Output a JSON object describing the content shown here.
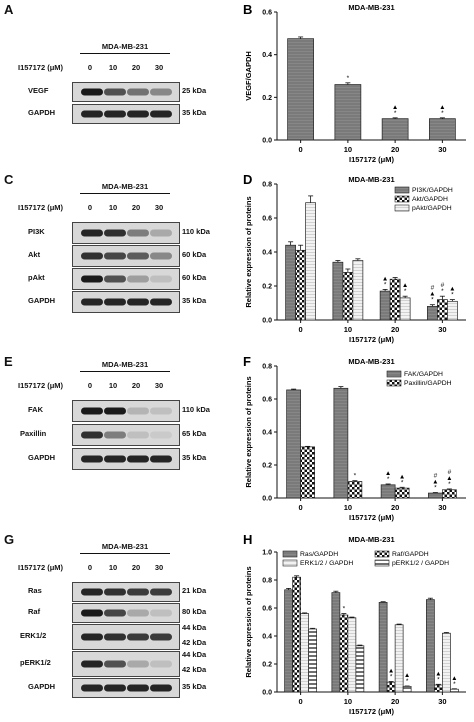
{
  "panels": {
    "A": {
      "letter": "A",
      "cell_line": "MDA-MB-231",
      "dose_label": "I157172 (μM)",
      "doses": [
        "0",
        "10",
        "20",
        "30"
      ],
      "rows": [
        {
          "name": "VEGF",
          "kda": "25 kDa",
          "intensity": [
            0.95,
            0.7,
            0.55,
            0.45
          ]
        },
        {
          "name": "GAPDH",
          "kda": "35 kDa",
          "intensity": [
            0.9,
            0.9,
            0.9,
            0.9
          ]
        }
      ]
    },
    "C": {
      "letter": "C",
      "cell_line": "MDA-MB-231",
      "dose_label": "I157172 (μM)",
      "doses": [
        "0",
        "10",
        "20",
        "30"
      ],
      "rows": [
        {
          "name": "PI3K",
          "kda": "110 kDa",
          "intensity": [
            0.9,
            0.85,
            0.5,
            0.3
          ]
        },
        {
          "name": "Akt",
          "kda": "60 kDa",
          "intensity": [
            0.85,
            0.75,
            0.65,
            0.45
          ]
        },
        {
          "name": "pAkt",
          "kda": "60 kDa",
          "intensity": [
            0.95,
            0.7,
            0.35,
            0.2
          ]
        },
        {
          "name": "GAPDH",
          "kda": "35 kDa",
          "intensity": [
            0.9,
            0.9,
            0.9,
            0.9
          ]
        }
      ]
    },
    "E": {
      "letter": "E",
      "cell_line": "MDA-MB-231",
      "dose_label": "I157172 (μM)",
      "doses": [
        "0",
        "10",
        "20",
        "30"
      ],
      "rows": [
        {
          "name": "FAK",
          "kda": "110 kDa",
          "intensity": [
            0.95,
            0.95,
            0.25,
            0.2
          ]
        },
        {
          "name": "Paxillin",
          "kda": "65 kDa",
          "intensity": [
            0.85,
            0.5,
            0.2,
            0.15
          ]
        },
        {
          "name": "GAPDH",
          "kda": "35 kDa",
          "intensity": [
            0.9,
            0.9,
            0.9,
            0.9
          ]
        }
      ]
    },
    "G": {
      "letter": "G",
      "cell_line": "MDA-MB-231",
      "dose_label": "I157172 (μM)",
      "doses": [
        "0",
        "10",
        "20",
        "30"
      ],
      "rows": [
        {
          "name": "Ras",
          "kda": "21 kDa",
          "intensity": [
            0.9,
            0.85,
            0.8,
            0.8
          ]
        },
        {
          "name": "Raf",
          "kda": "80 kDa",
          "intensity": [
            0.95,
            0.75,
            0.3,
            0.2
          ]
        },
        {
          "name": "ERK1/2",
          "kda": "44 kDa",
          "kda2": "42 kDa",
          "intensity": [
            0.9,
            0.85,
            0.8,
            0.8
          ]
        },
        {
          "name": "pERK1/2",
          "kda": "44 kDa",
          "kda2": "42 kDa",
          "intensity": [
            0.9,
            0.7,
            0.3,
            0.2
          ]
        },
        {
          "name": "GAPDH",
          "kda": "35 kDa",
          "intensity": [
            0.9,
            0.9,
            0.9,
            0.9
          ]
        }
      ]
    }
  },
  "chart_data": [
    {
      "panel": "B",
      "type": "bar",
      "title": "MDA-MB-231",
      "xlabel": "I157172 (μM)",
      "ylabel": "VEGF/GAPDH",
      "categories": [
        "0",
        "10",
        "20",
        "30"
      ],
      "ylim": [
        0,
        0.6
      ],
      "yticks": [
        "0.0",
        "0.2",
        "0.4",
        "0.6"
      ],
      "legend": "none",
      "series": [
        {
          "values": [
            0.475,
            0.26,
            0.1,
            0.1
          ],
          "err": [
            0.008,
            0.008,
            0.004,
            0.004
          ],
          "marks": [
            "",
            "*",
            "▲\n*",
            "▲\n*"
          ],
          "pattern": "gray"
        }
      ]
    },
    {
      "panel": "D",
      "type": "bar",
      "title": "MDA-MB-231",
      "xlabel": "I157172 (μM)",
      "ylabel": "Relative expression of proteins",
      "categories": [
        "0",
        "10",
        "20",
        "30"
      ],
      "ylim": [
        0,
        0.8
      ],
      "yticks": [
        "0.0",
        "0.2",
        "0.4",
        "0.6",
        "0.8"
      ],
      "legend": "top-right",
      "series": [
        {
          "name": "PI3K/GAPDH",
          "values": [
            0.44,
            0.34,
            0.17,
            0.08
          ],
          "err": [
            0.02,
            0.01,
            0.01,
            0.01
          ],
          "marks": [
            "",
            "",
            "▲\n*",
            "#\n▲\n*"
          ],
          "pattern": "gray"
        },
        {
          "name": "Akt/GAPDH",
          "values": [
            0.41,
            0.28,
            0.24,
            0.12
          ],
          "err": [
            0.03,
            0.02,
            0.01,
            0.02
          ],
          "marks": [
            "",
            "",
            "",
            "#\n*"
          ],
          "pattern": "check"
        },
        {
          "name": "pAkt/GAPDH",
          "values": [
            0.69,
            0.35,
            0.13,
            0.11
          ],
          "err": [
            0.04,
            0.01,
            0.01,
            0.01
          ],
          "marks": [
            "",
            "",
            "▲\n*",
            "▲\n*"
          ],
          "pattern": "light"
        }
      ]
    },
    {
      "panel": "F",
      "type": "bar",
      "title": "MDA-MB-231",
      "xlabel": "I157172 (μM)",
      "ylabel": "Relative expression of proteins",
      "categories": [
        "0",
        "10",
        "20",
        "30"
      ],
      "ylim": [
        0,
        0.8
      ],
      "yticks": [
        "0.0",
        "0.2",
        "0.4",
        "0.6",
        "0.8"
      ],
      "legend": "top-right",
      "series": [
        {
          "name": "FAK/GAPDH",
          "values": [
            0.655,
            0.665,
            0.08,
            0.03
          ],
          "err": [
            0.005,
            0.01,
            0.005,
            0.003
          ],
          "marks": [
            "",
            "",
            "▲\n*",
            "#\n▲\n*"
          ],
          "pattern": "gray"
        },
        {
          "name": "Paxillin/GAPDH",
          "values": [
            0.31,
            0.1,
            0.06,
            0.05
          ],
          "err": [
            0.003,
            0.005,
            0.005,
            0.005
          ],
          "marks": [
            "",
            "*",
            "▲\n*",
            "#\n▲\n*"
          ],
          "pattern": "check"
        }
      ]
    },
    {
      "panel": "H",
      "type": "bar",
      "title": "MDA-MB-231",
      "xlabel": "I157172 (μM)",
      "ylabel": "Relative expression of proteins",
      "categories": [
        "0",
        "10",
        "20",
        "30"
      ],
      "ylim": [
        0,
        1.0
      ],
      "yticks": [
        "0.0",
        "0.2",
        "0.4",
        "0.6",
        "0.8",
        "1.0"
      ],
      "legend": "top",
      "series": [
        {
          "name": "Ras/GAPDH",
          "values": [
            0.73,
            0.71,
            0.64,
            0.66
          ],
          "err": [
            0.01,
            0.01,
            0.005,
            0.01
          ],
          "marks": [
            "",
            "",
            "",
            ""
          ],
          "pattern": "gray"
        },
        {
          "name": "Raf/GAPDH",
          "values": [
            0.82,
            0.55,
            0.07,
            0.05
          ],
          "err": [
            0.01,
            0.01,
            0.005,
            0.005
          ],
          "marks": [
            "",
            "*",
            "▲\n*",
            "▲\n*"
          ],
          "pattern": "check"
        },
        {
          "name": "ERK1/2 / GAPDH",
          "values": [
            0.56,
            0.53,
            0.48,
            0.42
          ],
          "err": [
            0.005,
            0.005,
            0.005,
            0.005
          ],
          "marks": [
            "",
            "",
            "",
            ""
          ],
          "pattern": "light"
        },
        {
          "name": "pERK1/2 / GAPDH",
          "values": [
            0.45,
            0.33,
            0.04,
            0.02
          ],
          "err": [
            0.005,
            0.005,
            0.003,
            0.003
          ],
          "marks": [
            "",
            "",
            "▲\n*",
            "▲\n*"
          ],
          "pattern": "dark"
        }
      ]
    }
  ]
}
